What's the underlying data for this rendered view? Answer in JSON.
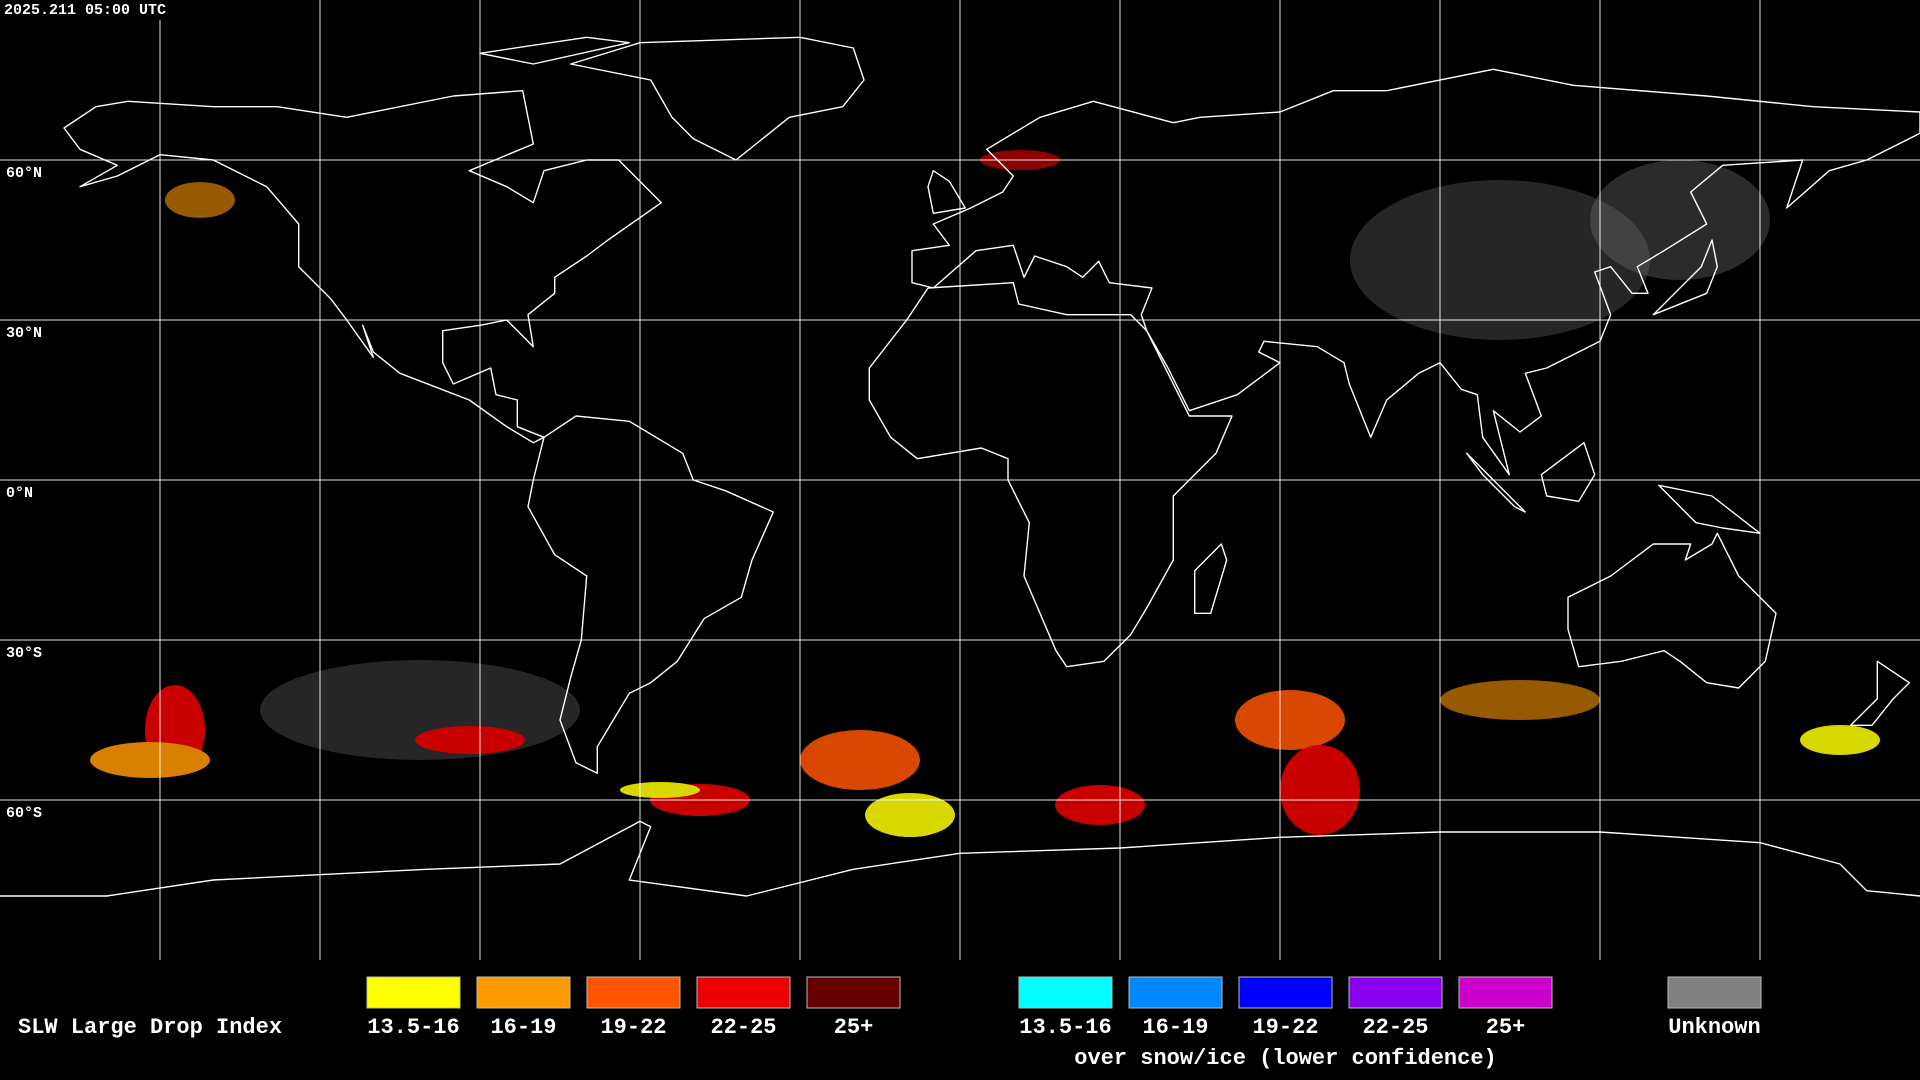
{
  "header": {
    "timestamp": "2025.211 05:00 UTC"
  },
  "map": {
    "latitude_labels": [
      "60°N",
      "30°N",
      "0°N",
      "30°S",
      "60°S"
    ]
  },
  "legend": {
    "title": "SLW Large Drop Index",
    "groups": [
      {
        "items": [
          {
            "label": "13.5-16",
            "color": "#ffff00"
          },
          {
            "label": "16-19",
            "color": "#ff9900"
          },
          {
            "label": "19-22",
            "color": "#ff5500"
          },
          {
            "label": "22-25",
            "color": "#ee0000"
          },
          {
            "label": "25+",
            "color": "#660000"
          }
        ]
      },
      {
        "note": "over snow/ice (lower confidence)",
        "items": [
          {
            "label": "13.5-16",
            "color": "#00ffff"
          },
          {
            "label": "16-19",
            "color": "#0088ff"
          },
          {
            "label": "19-22",
            "color": "#0000ff"
          },
          {
            "label": "22-25",
            "color": "#8800ee"
          },
          {
            "label": "25+",
            "color": "#cc00cc"
          }
        ]
      },
      {
        "items": [
          {
            "label": "Unknown",
            "color": "#808080"
          }
        ]
      }
    ]
  }
}
